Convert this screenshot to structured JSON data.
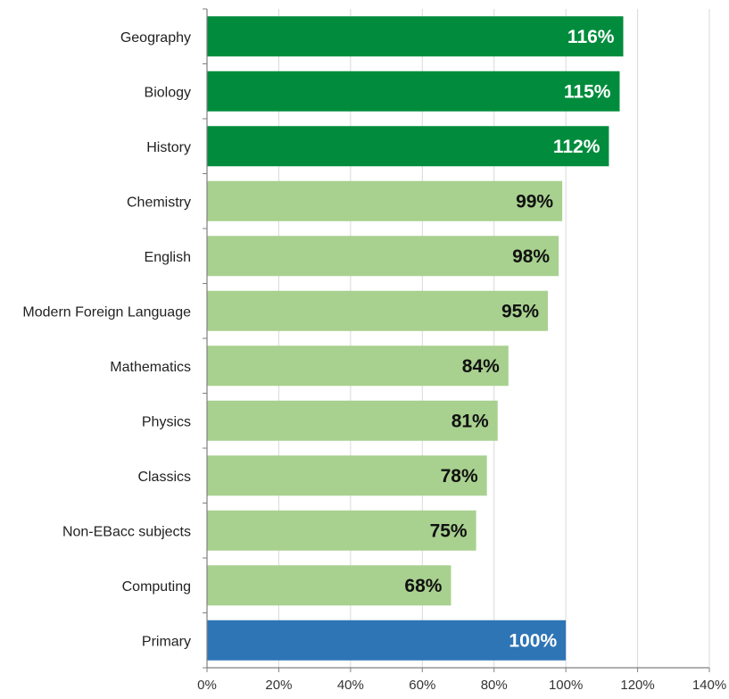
{
  "chart_data": {
    "type": "bar",
    "orientation": "horizontal",
    "categories": [
      "Geography",
      "Biology",
      "History",
      "Chemistry",
      "English",
      "Modern Foreign Language",
      "Mathematics",
      "Physics",
      "Classics",
      "Non-EBacc subjects",
      "Computing",
      "Primary"
    ],
    "values": [
      116,
      115,
      112,
      99,
      98,
      95,
      84,
      81,
      78,
      75,
      68,
      100
    ],
    "value_labels": [
      "116%",
      "115%",
      "112%",
      "99%",
      "98%",
      "95%",
      "84%",
      "81%",
      "78%",
      "75%",
      "68%",
      "100%"
    ],
    "groups": [
      "above",
      "above",
      "above",
      "below",
      "below",
      "below",
      "below",
      "below",
      "below",
      "below",
      "below",
      "primary"
    ],
    "xlim": [
      0,
      140
    ],
    "xticks": [
      0,
      20,
      40,
      60,
      80,
      100,
      120,
      140
    ],
    "xtick_labels": [
      "0%",
      "20%",
      "40%",
      "60%",
      "80%",
      "100%",
      "120%",
      "140%"
    ],
    "title": "",
    "xlabel": "",
    "ylabel": "",
    "grid": "vertical",
    "legend": "none",
    "colors": {
      "above": "#008c3c",
      "below": "#a8d18f",
      "primary": "#2e75b6",
      "grid": "#d9d9d9",
      "axis": "#808080",
      "label_on_dark": "#ffffff",
      "label_on_light": "#111111"
    }
  }
}
